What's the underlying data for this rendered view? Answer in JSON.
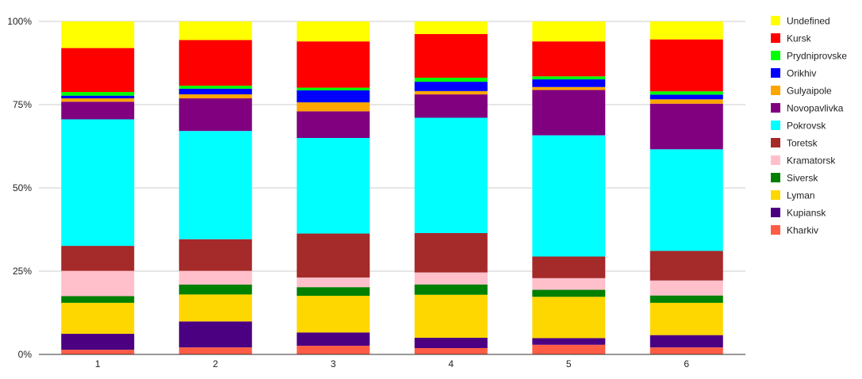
{
  "chart_data": {
    "type": "bar",
    "stacked": true,
    "normalized": true,
    "categories": [
      "1",
      "2",
      "3",
      "4",
      "5",
      "6"
    ],
    "ylim": [
      0,
      100
    ],
    "yticks": [
      {
        "value": 0,
        "label": "0%"
      },
      {
        "value": 25,
        "label": "25%"
      },
      {
        "value": 50,
        "label": "50%"
      },
      {
        "value": 75,
        "label": "75%"
      },
      {
        "value": 100,
        "label": "100%"
      }
    ],
    "grid": true,
    "legend": "right",
    "series": [
      {
        "name": "Kharkiv",
        "color": "#ff5c45",
        "values": [
          1.4,
          2.1,
          2.6,
          1.9,
          2.9,
          2.1
        ]
      },
      {
        "name": "Kupiansk",
        "color": "#4b0082",
        "values": [
          4.8,
          7.8,
          4.0,
          3.1,
          2.0,
          3.7
        ]
      },
      {
        "name": "Lyman",
        "color": "#ffd700",
        "values": [
          9.3,
          8.1,
          11.0,
          12.9,
          12.4,
          9.7
        ]
      },
      {
        "name": "Siversk",
        "color": "#008000",
        "values": [
          2.0,
          3.0,
          2.6,
          3.1,
          2.1,
          2.2
        ]
      },
      {
        "name": "Kramatorsk",
        "color": "#ffc0cb",
        "values": [
          7.6,
          4.1,
          2.9,
          3.6,
          3.5,
          4.5
        ]
      },
      {
        "name": "Toretsk",
        "color": "#a52a2a",
        "values": [
          7.5,
          9.5,
          13.2,
          11.8,
          6.5,
          8.9
        ]
      },
      {
        "name": "Pokrovsk",
        "color": "#00ffff",
        "values": [
          38.0,
          32.5,
          28.7,
          34.6,
          36.4,
          30.5
        ]
      },
      {
        "name": "Novopavlivka",
        "color": "#800080",
        "values": [
          5.3,
          9.8,
          8.0,
          7.0,
          13.6,
          13.7
        ]
      },
      {
        "name": "Gulyaipole",
        "color": "#ffa500",
        "values": [
          1.0,
          1.2,
          2.7,
          1.0,
          0.9,
          1.3
        ]
      },
      {
        "name": "Orikhiv",
        "color": "#0000ff",
        "values": [
          0.8,
          1.7,
          3.6,
          2.8,
          2.3,
          1.4
        ]
      },
      {
        "name": "Prydniprovske",
        "color": "#00ff00",
        "values": [
          1.1,
          0.9,
          0.8,
          1.2,
          0.9,
          1.0
        ]
      },
      {
        "name": "Kursk",
        "color": "#ff0000",
        "values": [
          13.2,
          13.7,
          13.9,
          13.1,
          10.5,
          15.6
        ]
      },
      {
        "name": "Undefined",
        "color": "#ffff00",
        "values": [
          8.0,
          5.6,
          6.0,
          3.8,
          6.0,
          5.4
        ]
      }
    ]
  }
}
